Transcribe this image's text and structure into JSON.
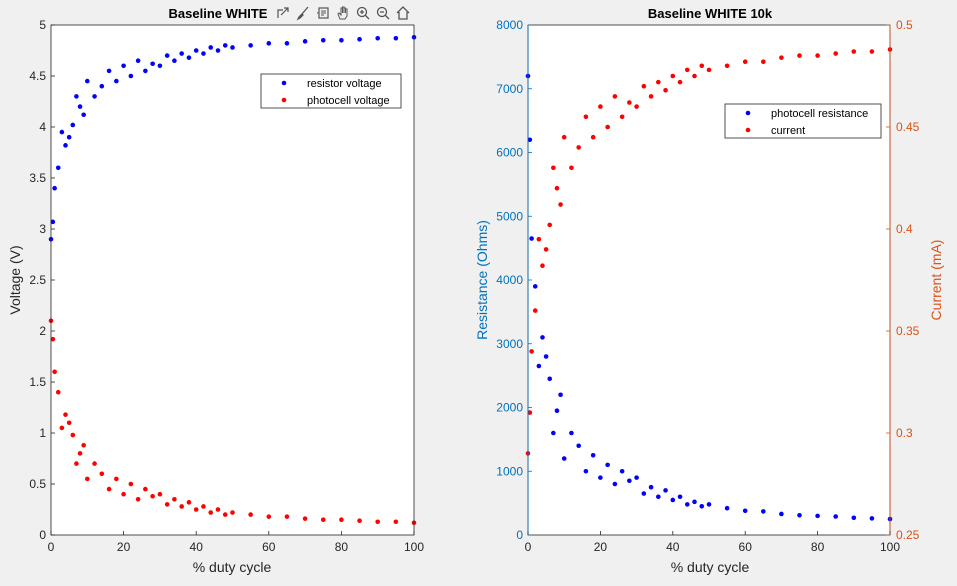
{
  "chart_data": [
    {
      "type": "scatter",
      "title": "Baseline WHITE",
      "xlabel": "% duty cycle",
      "ylabel": "Voltage (V)",
      "xlim": [
        0,
        100
      ],
      "ylim": [
        0,
        5
      ],
      "xticks": [
        "0",
        "20",
        "40",
        "60",
        "80",
        "100"
      ],
      "yticks": [
        "0",
        "0.5",
        "1",
        "1.5",
        "2",
        "2.5",
        "3",
        "3.5",
        "4",
        "4.5",
        "5"
      ],
      "legend": "top-right",
      "series": [
        {
          "name": "resistor voltage",
          "color": "#0000ff",
          "x": [
            0,
            0.5,
            1,
            2,
            3,
            4,
            5,
            6,
            7,
            8,
            9,
            10,
            12,
            14,
            16,
            18,
            20,
            22,
            24,
            26,
            28,
            30,
            32,
            34,
            36,
            38,
            40,
            42,
            44,
            46,
            48,
            50,
            55,
            60,
            65,
            70,
            75,
            80,
            85,
            90,
            95,
            100
          ],
          "y": [
            2.9,
            3.07,
            3.4,
            3.6,
            3.95,
            3.82,
            3.9,
            4.02,
            4.3,
            4.2,
            4.12,
            4.45,
            4.3,
            4.4,
            4.55,
            4.45,
            4.6,
            4.5,
            4.65,
            4.55,
            4.62,
            4.6,
            4.7,
            4.65,
            4.72,
            4.68,
            4.75,
            4.72,
            4.78,
            4.75,
            4.8,
            4.78,
            4.8,
            4.82,
            4.82,
            4.84,
            4.85,
            4.85,
            4.86,
            4.87,
            4.87,
            4.88
          ]
        },
        {
          "name": "photocell voltage",
          "color": "#ff0000",
          "x": [
            0,
            0.5,
            1,
            2,
            3,
            4,
            5,
            6,
            7,
            8,
            9,
            10,
            12,
            14,
            16,
            18,
            20,
            22,
            24,
            26,
            28,
            30,
            32,
            34,
            36,
            38,
            40,
            42,
            44,
            46,
            48,
            50,
            55,
            60,
            65,
            70,
            75,
            80,
            85,
            90,
            95,
            100
          ],
          "y": [
            2.1,
            1.92,
            1.6,
            1.4,
            1.05,
            1.18,
            1.1,
            0.98,
            0.7,
            0.8,
            0.88,
            0.55,
            0.7,
            0.6,
            0.45,
            0.55,
            0.4,
            0.5,
            0.35,
            0.45,
            0.38,
            0.4,
            0.3,
            0.35,
            0.28,
            0.32,
            0.25,
            0.28,
            0.22,
            0.25,
            0.2,
            0.22,
            0.2,
            0.18,
            0.18,
            0.16,
            0.15,
            0.15,
            0.14,
            0.13,
            0.13,
            0.12
          ]
        }
      ]
    },
    {
      "type": "scatter",
      "title": "Baseline WHITE 10k",
      "xlabel": "% duty cycle",
      "ylabel": "Resistance (Ohms)",
      "y2label": "Current (mA)",
      "xlim": [
        0,
        100
      ],
      "ylim": [
        0,
        8000
      ],
      "y2lim": [
        0.25,
        0.5
      ],
      "xticks": [
        "0",
        "20",
        "40",
        "60",
        "80",
        "100"
      ],
      "yticks": [
        "0",
        "1000",
        "2000",
        "3000",
        "4000",
        "5000",
        "6000",
        "7000",
        "8000"
      ],
      "y2ticks": [
        "0.25",
        "0.3",
        "0.35",
        "0.4",
        "0.45",
        "0.5"
      ],
      "legend": "top-right",
      "series": [
        {
          "name": "photocell resistance",
          "color": "#0000ff",
          "axis": "left",
          "x": [
            0,
            0.5,
            1,
            2,
            3,
            4,
            5,
            6,
            7,
            8,
            9,
            10,
            12,
            14,
            16,
            18,
            20,
            22,
            24,
            26,
            28,
            30,
            32,
            34,
            36,
            38,
            40,
            42,
            44,
            46,
            48,
            50,
            55,
            60,
            65,
            70,
            75,
            80,
            85,
            90,
            95,
            100
          ],
          "y": [
            7200,
            6200,
            4650,
            3900,
            2650,
            3100,
            2800,
            2450,
            1600,
            1950,
            2200,
            1200,
            1600,
            1400,
            1000,
            1250,
            900,
            1100,
            800,
            1000,
            850,
            900,
            650,
            750,
            600,
            700,
            550,
            600,
            480,
            520,
            450,
            480,
            420,
            380,
            370,
            330,
            310,
            300,
            290,
            270,
            260,
            250
          ]
        },
        {
          "name": "current",
          "color": "#ff0000",
          "axis": "right",
          "x": [
            0,
            0.5,
            1,
            2,
            3,
            4,
            5,
            6,
            7,
            8,
            9,
            10,
            12,
            14,
            16,
            18,
            20,
            22,
            24,
            26,
            28,
            30,
            32,
            34,
            36,
            38,
            40,
            42,
            44,
            46,
            48,
            50,
            55,
            60,
            65,
            70,
            75,
            80,
            85,
            90,
            95,
            100
          ],
          "y": [
            0.29,
            0.31,
            0.34,
            0.36,
            0.395,
            0.382,
            0.39,
            0.402,
            0.43,
            0.42,
            0.412,
            0.445,
            0.43,
            0.44,
            0.455,
            0.445,
            0.46,
            0.45,
            0.465,
            0.455,
            0.462,
            0.46,
            0.47,
            0.465,
            0.472,
            0.468,
            0.475,
            0.472,
            0.478,
            0.475,
            0.48,
            0.478,
            0.48,
            0.482,
            0.482,
            0.484,
            0.485,
            0.485,
            0.486,
            0.487,
            0.487,
            0.488
          ]
        }
      ]
    }
  ],
  "toolbar": {
    "icons": [
      "export-icon",
      "brush-icon",
      "datatip-icon",
      "pan-icon",
      "zoom-in-icon",
      "zoom-out-icon",
      "home-icon"
    ]
  }
}
